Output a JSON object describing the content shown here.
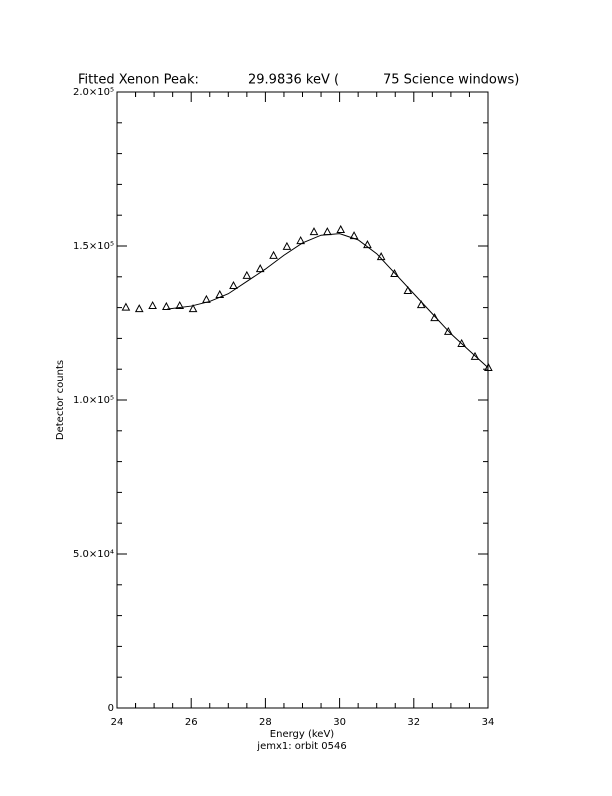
{
  "chart_data": {
    "type": "scatter",
    "title": [
      "Fitted Xenon Peak:",
      "29.9836 keV (",
      "75 Science windows)"
    ],
    "x_label": "Energy (keV)",
    "subtitle": "jemx1: orbit 0546",
    "y_label": "Detector counts",
    "xlim": [
      24,
      34
    ],
    "xticks": [
      24,
      26,
      28,
      30,
      32,
      34
    ],
    "xminorticks": [
      24.5,
      25,
      25.5,
      26.5,
      27,
      27.5,
      28.5,
      29,
      29.5,
      30.5,
      31,
      31.5,
      32.5,
      33,
      33.5,
      24.5
    ],
    "ylim": [
      0,
      200000
    ],
    "yticks": [
      0,
      {
        "value": 50000,
        "label": "5.0×10⁴"
      },
      {
        "value": 100000,
        "label": "1.0×10⁵"
      },
      {
        "value": 150000,
        "label": "1.5×10⁵"
      },
      {
        "value": 200000,
        "label": "2.0×10⁵"
      }
    ],
    "yminorticks": [
      10000,
      20000,
      30000,
      40000,
      60000,
      70000,
      80000,
      90000,
      110000,
      120000,
      130000,
      140000,
      160000,
      170000,
      180000,
      190000
    ],
    "color": "#000000",
    "series": [
      {
        "type": "scatter",
        "x": [
          24.24,
          24.6,
          24.96,
          25.33,
          25.69,
          26.05,
          26.41,
          26.77,
          27.14,
          27.5,
          27.86,
          28.22,
          28.58,
          28.95,
          29.31,
          29.67,
          30.03,
          30.39,
          30.75,
          31.12,
          31.48,
          31.84,
          32.2,
          32.56,
          32.93,
          33.29,
          33.65,
          34.01
        ],
        "values": [
          130000,
          129500,
          130500,
          130200,
          130500,
          129500,
          132500,
          134100,
          137000,
          140300,
          142500,
          146800,
          149700,
          151600,
          154500,
          154500,
          155200,
          153200,
          150300,
          146400,
          140900,
          135400,
          130800,
          126600,
          122100,
          118200,
          114000,
          110400
        ]
      },
      {
        "type": "line",
        "x": [
          25.35,
          26,
          26.5,
          27,
          27.5,
          28,
          28.5,
          29,
          29.5,
          30,
          30.5,
          31,
          31.5,
          32,
          32.5,
          33,
          33.5,
          34
        ],
        "values": [
          129500,
          130500,
          132000,
          134500,
          138500,
          142500,
          147000,
          151000,
          153500,
          154000,
          152000,
          147500,
          141000,
          134500,
          128000,
          121500,
          116000,
          110500
        ]
      }
    ]
  }
}
